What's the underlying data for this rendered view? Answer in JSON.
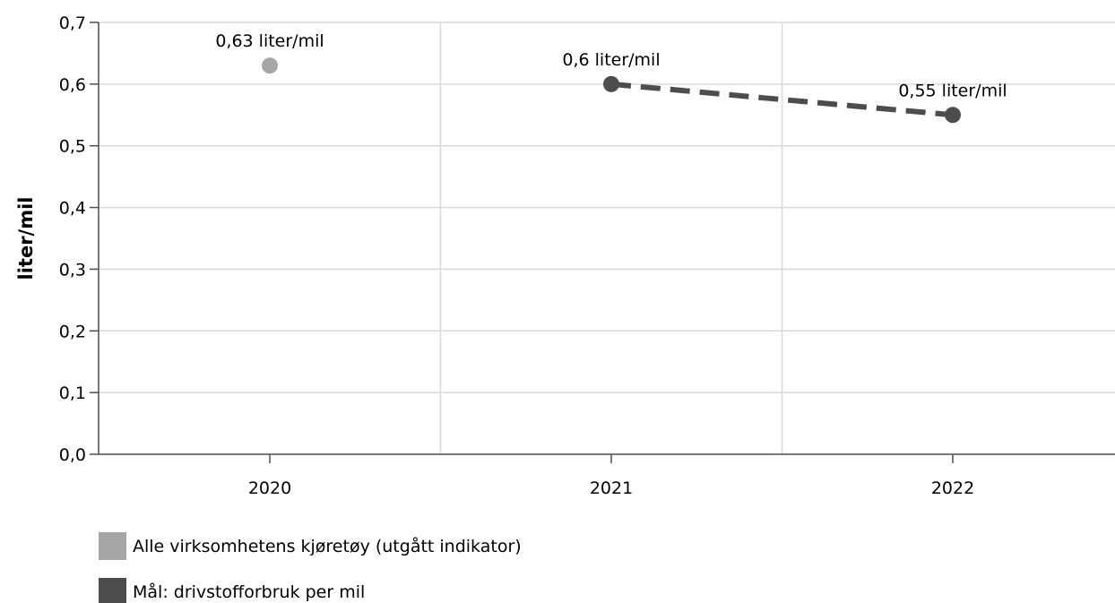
{
  "chart_data": {
    "type": "line",
    "ylabel": "liter/mil",
    "xlabel": "",
    "categories": [
      "2020",
      "2021",
      "2022"
    ],
    "ylim": [
      0,
      0.7
    ],
    "yticks": [
      "0,0",
      "0,1",
      "0,2",
      "0,3",
      "0,4",
      "0,5",
      "0,6",
      "0,7"
    ],
    "ytick_values": [
      0,
      0.1,
      0.2,
      0.3,
      0.4,
      0.5,
      0.6,
      0.7
    ],
    "grid": true,
    "legend_position": "bottom-left",
    "series": [
      {
        "name": "Alle virksomhetens kjøretøy (utgått indikator)",
        "color": "#a6a6a6",
        "line_style": "none",
        "points": [
          {
            "x": "2020",
            "y": 0.63,
            "label": "0,63 liter/mil"
          }
        ]
      },
      {
        "name": "Mål: drivstofforbruk per mil",
        "color": "#4d4d4d",
        "line_style": "dashed",
        "points": [
          {
            "x": "2021",
            "y": 0.6,
            "label": "0,6 liter/mil"
          },
          {
            "x": "2022",
            "y": 0.55,
            "label": "0,55 liter/mil"
          }
        ]
      }
    ]
  }
}
